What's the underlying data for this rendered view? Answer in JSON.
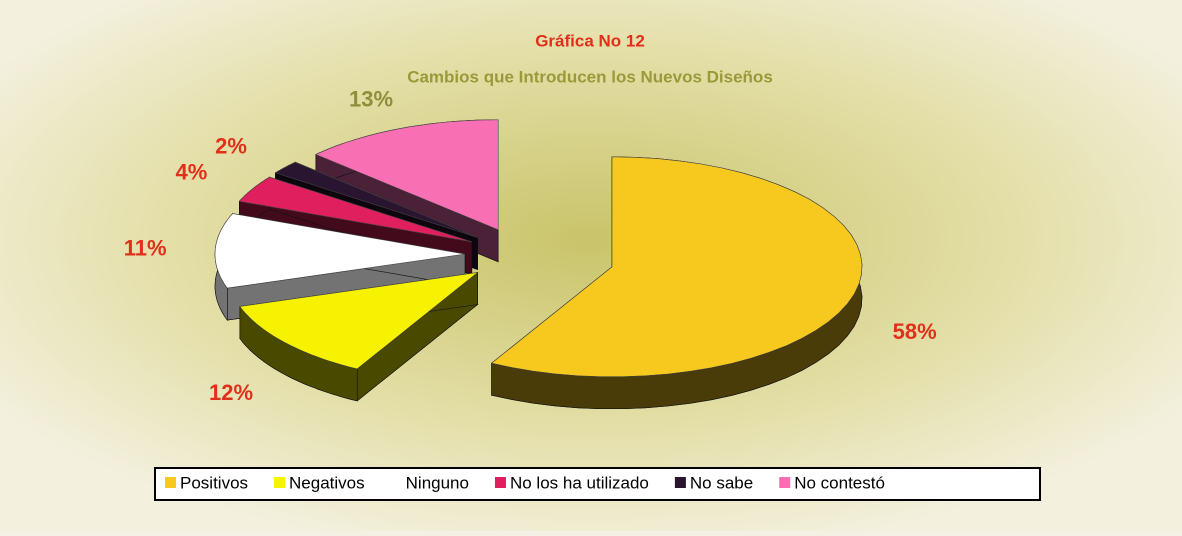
{
  "chart_data": {
    "type": "pie",
    "title": "Gráfica No 12",
    "subtitle": "Cambios que Introducen los Nuevos Diseños",
    "categories": [
      "Positivos",
      "Negativos",
      "Ninguno",
      "No los ha utilizado",
      "No sabe",
      "No contestó"
    ],
    "values": [
      58,
      12,
      11,
      4,
      2,
      13
    ],
    "value_labels": [
      "58%",
      "12%",
      "11%",
      "4%",
      "2%",
      "13%"
    ],
    "colors": [
      "#f7c81e",
      "#f6f200",
      "#ffffff",
      "#e0205e",
      "#2a1530",
      "#f86fb4"
    ],
    "value_label_colors": [
      "#e0301a",
      "#e0301a",
      "#e0301a",
      "#e0301a",
      "#e0301a",
      "#8f8f3a"
    ],
    "legend": "bottom"
  }
}
